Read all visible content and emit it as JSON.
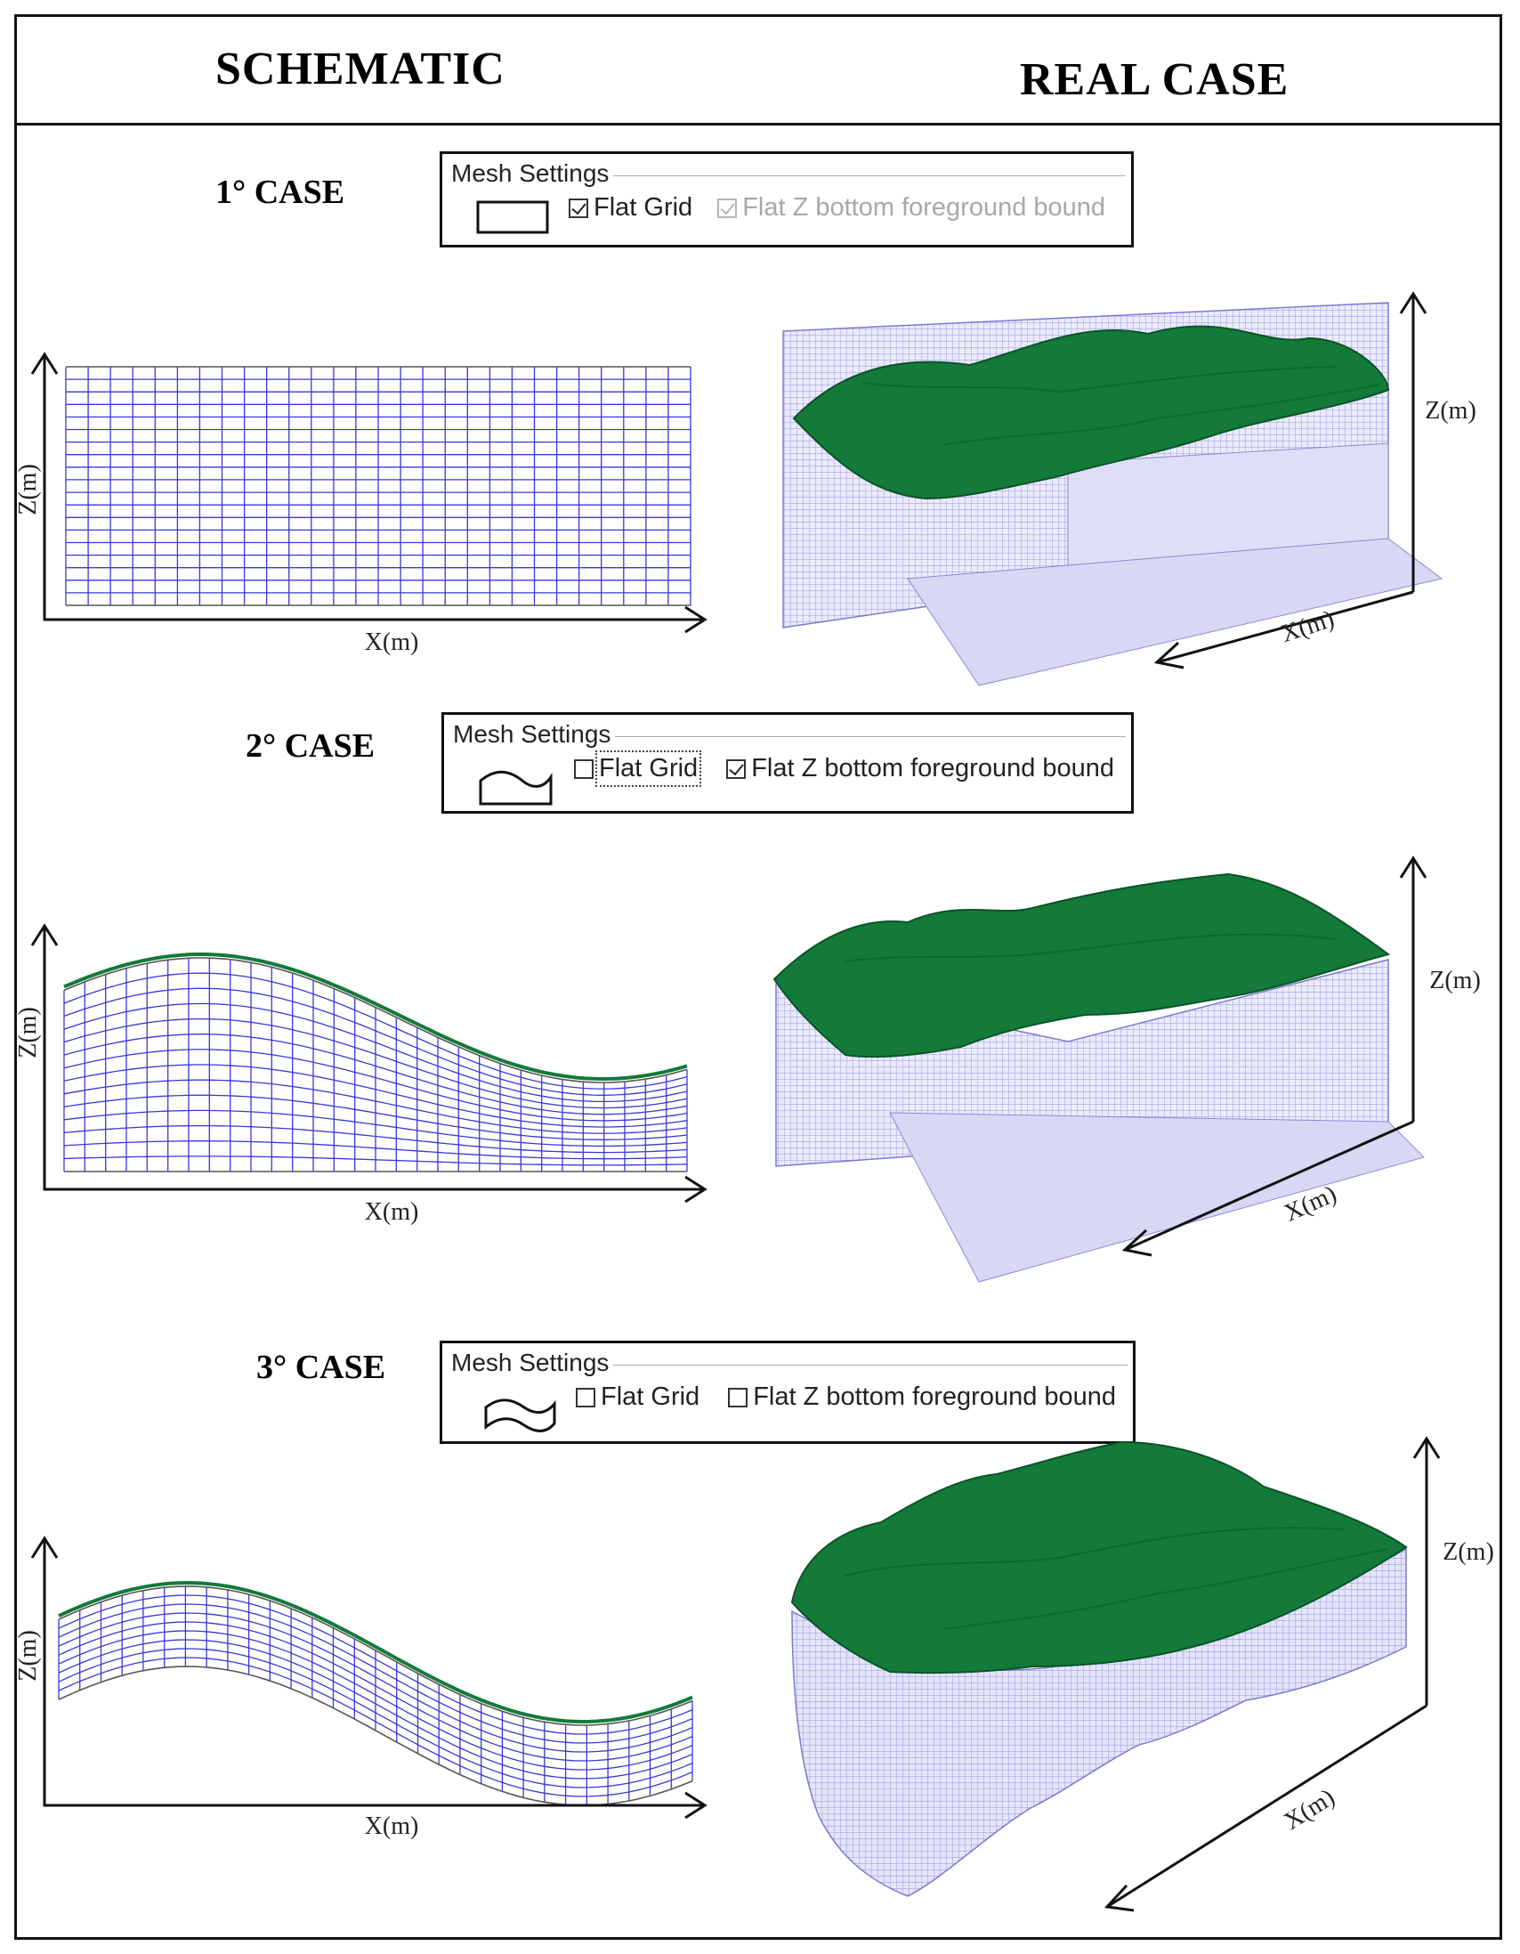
{
  "headers": {
    "schematic": "SCHEMATIC",
    "real_case": "REAL CASE"
  },
  "axis_labels": {
    "x": "X(m)",
    "z": "Z(m)"
  },
  "colors": {
    "mesh": "#3838d8",
    "surface": "#137a3a",
    "outline": "#111111",
    "disabled": "#b5b5b5"
  },
  "cases": [
    {
      "title": "1° CASE",
      "mesh_settings": {
        "legend": "Mesh Settings",
        "shape_icon": "flat-rectangle-icon",
        "flat_grid": {
          "label": "Flat Grid",
          "checked": true,
          "enabled": true
        },
        "flat_z_bottom": {
          "label": "Flat Z bottom foreground bound",
          "checked": true,
          "enabled": false
        }
      }
    },
    {
      "title": "2° CASE",
      "mesh_settings": {
        "legend": "Mesh Settings",
        "shape_icon": "wavy-top-flat-bottom-icon",
        "flat_grid": {
          "label": "Flat Grid",
          "checked": false,
          "enabled": true
        },
        "flat_z_bottom": {
          "label": "Flat Z bottom foreground bound",
          "checked": true,
          "enabled": true
        }
      }
    },
    {
      "title": "3° CASE",
      "mesh_settings": {
        "legend": "Mesh Settings",
        "shape_icon": "wavy-top-wavy-bottom-icon",
        "flat_grid": {
          "label": "Flat Grid",
          "checked": false,
          "enabled": true
        },
        "flat_z_bottom": {
          "label": "Flat Z bottom foreground bound",
          "checked": false,
          "enabled": true
        }
      }
    }
  ]
}
